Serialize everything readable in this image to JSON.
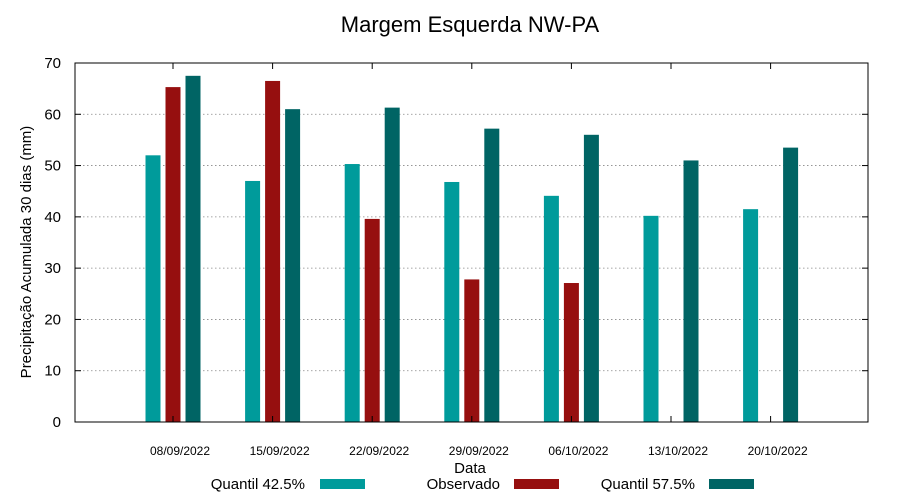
{
  "chart_data": {
    "type": "bar",
    "title": "Margem Esquerda NW-PA",
    "xlabel": "Data",
    "ylabel": "Precipitação Acumulada 30 dias (mm)",
    "ylim": [
      0,
      70
    ],
    "yticks": [
      0,
      10,
      20,
      30,
      40,
      50,
      60,
      70
    ],
    "grid": true,
    "legend_position": "bottom",
    "categories": [
      "08/09/2022",
      "15/09/2022",
      "22/09/2022",
      "29/09/2022",
      "06/10/2022",
      "13/10/2022",
      "20/10/2022"
    ],
    "series": [
      {
        "name": "Quantil 42.5%",
        "color": "#009b9b",
        "values": [
          52,
          47,
          50.3,
          46.8,
          44.1,
          40.2,
          41.5
        ]
      },
      {
        "name": "Observado",
        "color": "#960f0f",
        "values": [
          65.3,
          66.5,
          39.6,
          27.8,
          27.1,
          null,
          null
        ]
      },
      {
        "name": "Quantil 57.5%",
        "color": "#006464",
        "values": [
          67.5,
          61,
          61.3,
          57.2,
          56,
          51,
          53.5
        ]
      }
    ]
  }
}
